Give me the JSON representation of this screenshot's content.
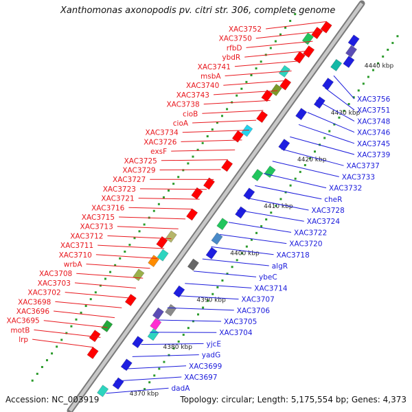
{
  "title": "Xanthomonas axonopodis pv. citri str. 306, complete genome",
  "footer": {
    "accession": "Accession: NC_003919",
    "summary": "Topology: circular; Length: 5,175,554 bp; Genes: 4,373"
  },
  "colors": {
    "left_label": "#e8161c",
    "right_label": "#1a1adb",
    "left_gene": "#ff0000",
    "right_gene": "#1010e0",
    "backbone": "#9e9e9e",
    "tick": "#2a9a2a"
  },
  "scale_labels": [
    "4440 kbp",
    "4430 kbp",
    "4420 kbp",
    "4410 kbp",
    "4400 kbp",
    "4390 kbp",
    "4380 kbp",
    "4370 kbp"
  ],
  "left_labels": [
    "XAC3752",
    "XAC3750",
    "rfbD",
    "ybdR",
    "XAC3741",
    "msbA",
    "XAC3740",
    "XAC3743",
    "XAC3738",
    "cioB",
    "cioA",
    "XAC3734",
    "XAC3726",
    "exsF",
    "XAC3725",
    "XAC3729",
    "XAC3727",
    "XAC3723",
    "XAC3721",
    "XAC3716",
    "XAC3715",
    "XAC3713",
    "XAC3712",
    "XAC3711",
    "XAC3710",
    "wrbA",
    "XAC3708",
    "XAC3703",
    "XAC3702",
    "XAC3698",
    "XAC3696",
    "XAC3695",
    "motB",
    "lrp"
  ],
  "right_labels": [
    "XAC3756",
    "XAC3751",
    "XAC3748",
    "XAC3746",
    "XAC3745",
    "XAC3739",
    "XAC3737",
    "XAC3733",
    "XAC3732",
    "cheR",
    "XAC3728",
    "XAC3724",
    "XAC3722",
    "XAC3720",
    "XAC3718",
    "algR",
    "ybeC",
    "XAC3714",
    "XAC3707",
    "XAC3706",
    "XAC3705",
    "XAC3704",
    "yjcE",
    "yadG",
    "XAC3699",
    "XAC3697",
    "dadA"
  ]
}
